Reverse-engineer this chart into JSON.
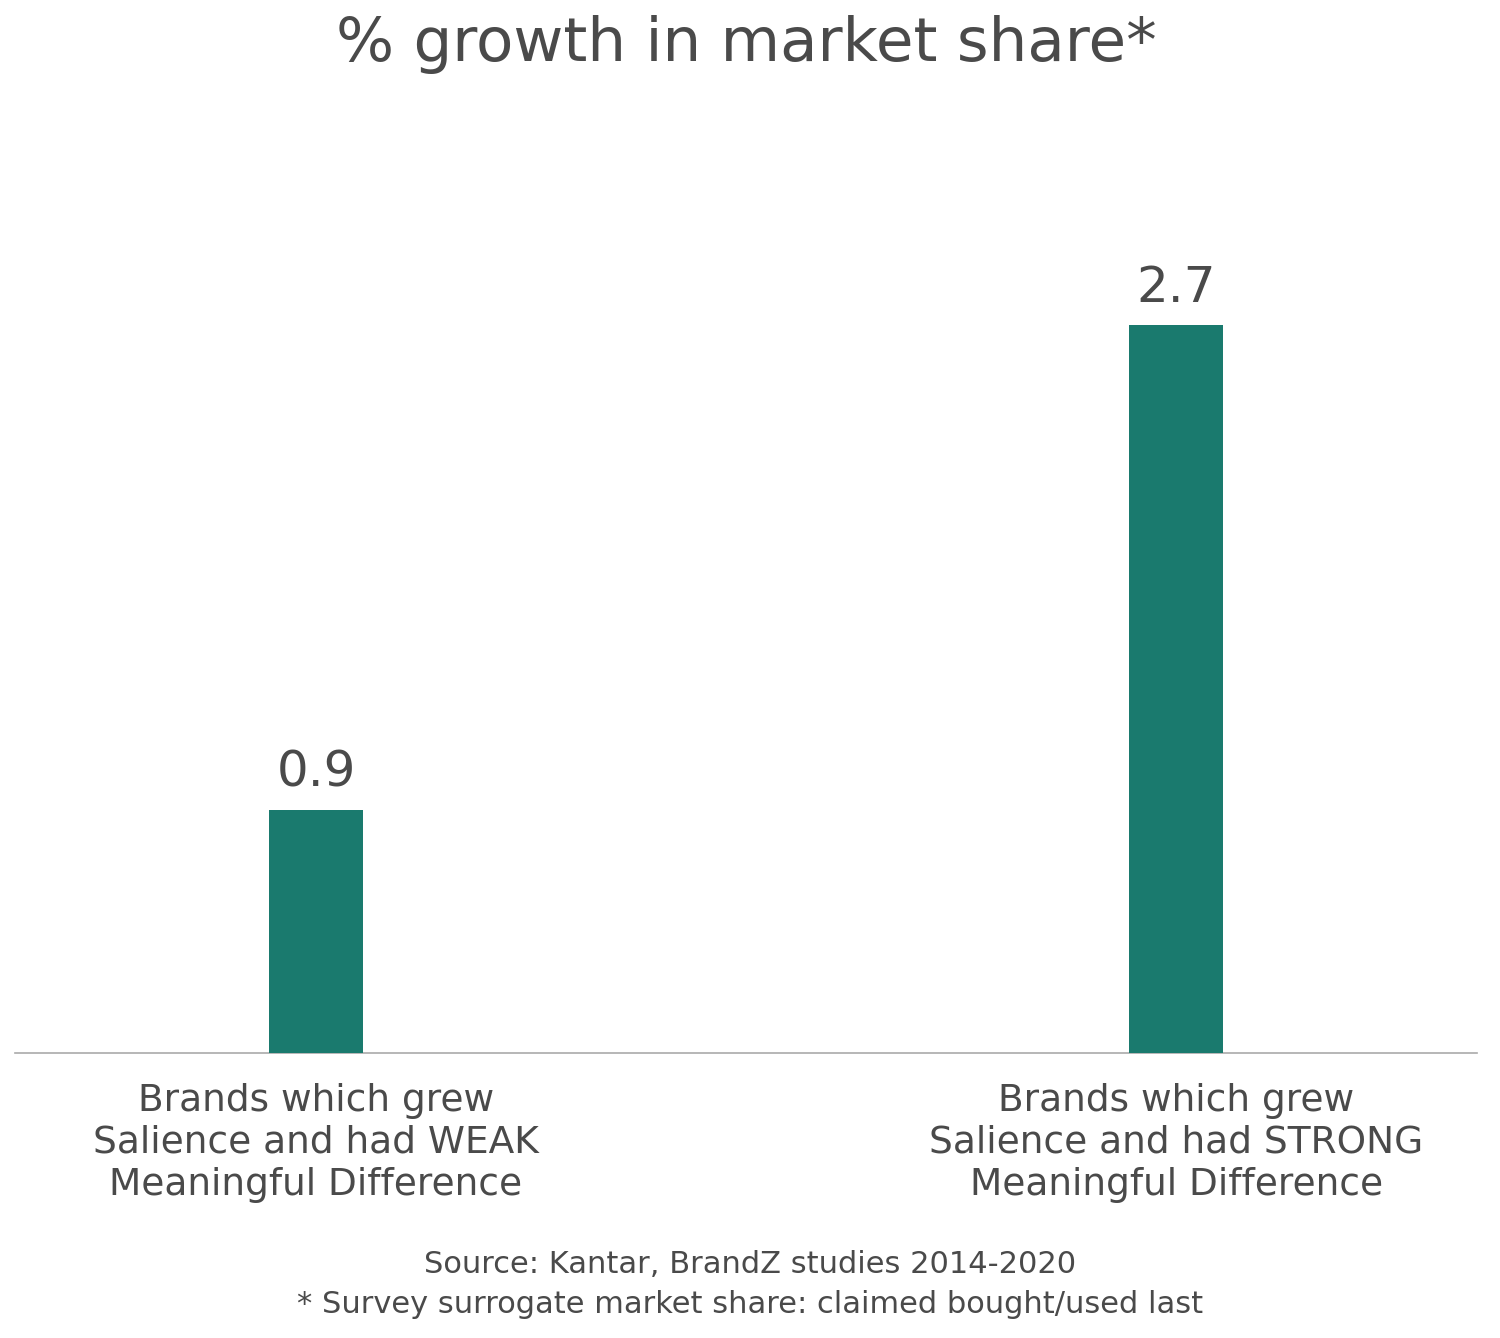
{
  "categories": [
    "Brands which grew\nSalience and had WEAK\nMeaningful Difference",
    "Brands which grew\nSalience and had STRONG\nMeaningful Difference"
  ],
  "values": [
    0.9,
    2.7
  ],
  "bar_color": "#1a7a6e",
  "title": "% growth in market share*",
  "title_fontsize": 44,
  "title_color": "#4a4a4a",
  "value_labels": [
    "0.9",
    "2.7"
  ],
  "value_fontsize": 36,
  "value_color": "#4a4a4a",
  "xlabel_fontsize": 27,
  "xlabel_color": "#4a4a4a",
  "footnote_line1": "Source: Kantar, BrandZ studies 2014-2020",
  "footnote_line2": "* Survey surrogate market share: claimed bought/used last",
  "footnote_fontsize": 22,
  "footnote_color": "#4a4a4a",
  "ylim": [
    0,
    3.5
  ],
  "background_color": "#ffffff",
  "bar_width": 0.22,
  "x_positions": [
    1,
    3
  ],
  "xlim": [
    0.3,
    3.7
  ]
}
